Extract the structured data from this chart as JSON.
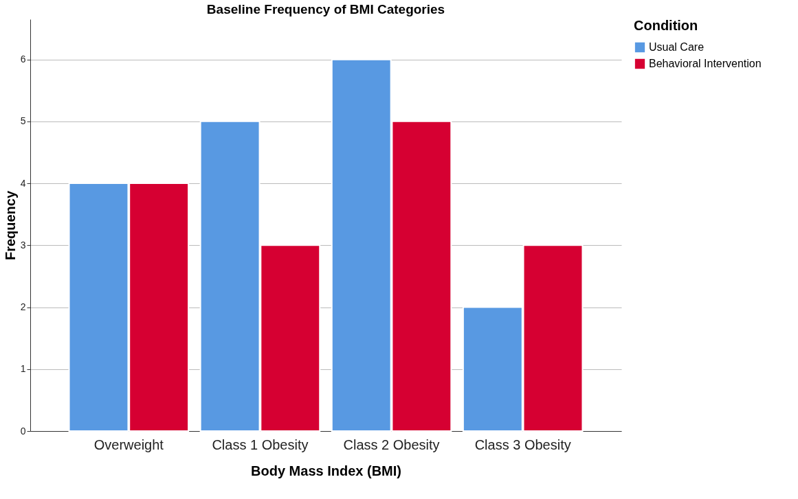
{
  "chart_data": {
    "type": "bar",
    "title": "Baseline Frequency of BMI Categories",
    "xlabel": "Body Mass Index (BMI)",
    "ylabel": "Frequency",
    "legend_title": "Condition",
    "categories": [
      "Overweight",
      "Class 1 Obesity",
      "Class 2 Obesity",
      "Class 3 Obesity"
    ],
    "series": [
      {
        "name": "Usual Care",
        "color": "#5899e2",
        "values": [
          4,
          5,
          6,
          2
        ]
      },
      {
        "name": "Behavioral Intervention",
        "color": "#d60032",
        "values": [
          4,
          3,
          5,
          3
        ]
      }
    ],
    "ylim": [
      0,
      6.65
    ],
    "yticks": [
      0,
      1,
      2,
      3,
      4,
      5,
      6
    ],
    "grid": "y",
    "legend": "top right"
  }
}
